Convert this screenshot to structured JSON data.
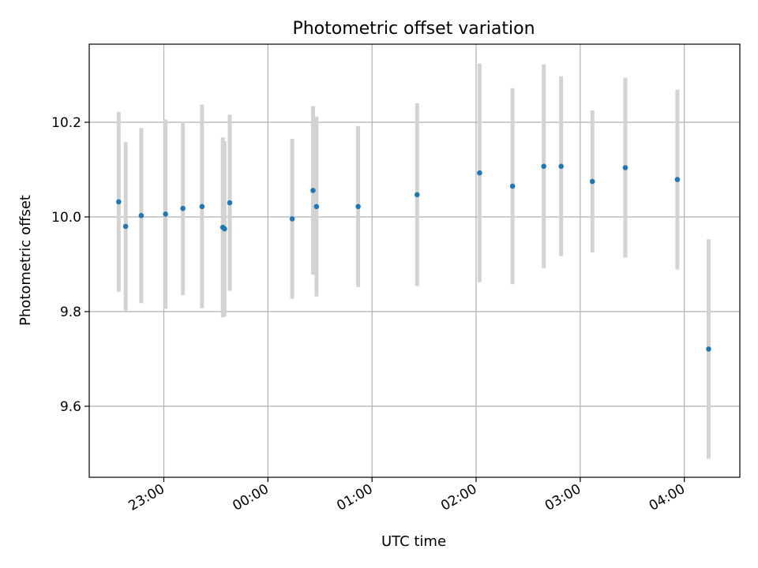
{
  "chart_data": {
    "type": "scatter",
    "title": "Photometric offset variation",
    "xlabel": "UTC time",
    "ylabel": "Photometric offset",
    "x_is_time": true,
    "xlim": [
      "22:17",
      "04:32"
    ],
    "ylim": [
      9.45,
      10.365
    ],
    "x_ticks": [
      "23:00",
      "00:00",
      "01:00",
      "02:00",
      "03:00",
      "04:00"
    ],
    "y_ticks": [
      9.6,
      9.8,
      10.0,
      10.2
    ],
    "grid": true,
    "colors": {
      "point": "#1f77b4",
      "errorbar": "#d3d3d3",
      "grid": "#b0b0b0"
    },
    "points": [
      {
        "time": "22:34",
        "y": 10.032,
        "err": 0.19
      },
      {
        "time": "22:38",
        "y": 9.98,
        "err": 0.178
      },
      {
        "time": "22:47",
        "y": 10.003,
        "err": 0.185
      },
      {
        "time": "23:01",
        "y": 10.006,
        "err": 0.2
      },
      {
        "time": "23:11",
        "y": 10.018,
        "err": 0.183
      },
      {
        "time": "23:22",
        "y": 10.022,
        "err": 0.215
      },
      {
        "time": "23:34",
        "y": 9.978,
        "err": 0.19
      },
      {
        "time": "23:35",
        "y": 9.975,
        "err": 0.185
      },
      {
        "time": "23:38",
        "y": 10.03,
        "err": 0.186
      },
      {
        "time": "00:14",
        "y": 9.996,
        "err": 0.169
      },
      {
        "time": "00:26",
        "y": 10.056,
        "err": 0.178
      },
      {
        "time": "00:28",
        "y": 10.022,
        "err": 0.19
      },
      {
        "time": "00:52",
        "y": 10.022,
        "err": 0.17
      },
      {
        "time": "01:26",
        "y": 10.047,
        "err": 0.193
      },
      {
        "time": "02:02",
        "y": 10.093,
        "err": 0.231
      },
      {
        "time": "02:21",
        "y": 10.065,
        "err": 0.207
      },
      {
        "time": "02:39",
        "y": 10.107,
        "err": 0.215
      },
      {
        "time": "02:49",
        "y": 10.107,
        "err": 0.19
      },
      {
        "time": "03:07",
        "y": 10.075,
        "err": 0.15
      },
      {
        "time": "03:26",
        "y": 10.104,
        "err": 0.19
      },
      {
        "time": "03:56",
        "y": 10.079,
        "err": 0.19
      },
      {
        "time": "04:14",
        "y": 9.721,
        "err": 0.232
      }
    ]
  }
}
